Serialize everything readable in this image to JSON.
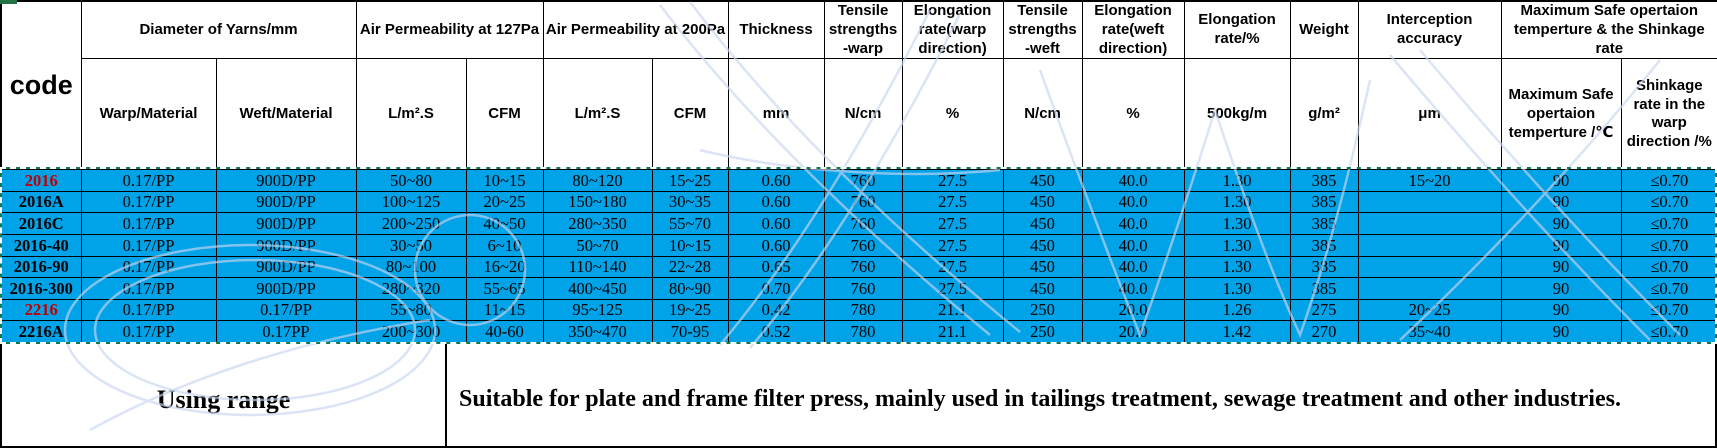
{
  "colors": {
    "highlight_blue": "#00a2e8",
    "code_red": "#c00000",
    "selection_green": "#0e7a52",
    "watermark_blue": "#c9d6f0",
    "border_black": "#000000"
  },
  "table": {
    "code_header": "code",
    "groups": [
      {
        "label": "Diameter of Yarns/mm",
        "span": 2
      },
      {
        "label": "Air Permeability at 127Pa",
        "span": 2
      },
      {
        "label": "Air Permeability at 200Pa",
        "span": 2
      },
      {
        "label": "Thickness",
        "span": 1
      },
      {
        "label": "Tensile strengths -warp",
        "span": 1
      },
      {
        "label": "Elongation rate(warp direction)",
        "span": 1
      },
      {
        "label": "Tensile strengths -weft",
        "span": 1
      },
      {
        "label": "Elongation rate(weft direction)",
        "span": 1
      },
      {
        "label": "Elongation rate/%",
        "span": 1
      },
      {
        "label": "Weight",
        "span": 1
      },
      {
        "label": "Interception accuracy",
        "span": 1
      },
      {
        "label": "Maximum Safe opertaion temperture & the Shinkage rate",
        "span": 2
      }
    ],
    "sub_headers": [
      "Warp/Material",
      "Weft/Material",
      "L/m².S",
      "CFM",
      "L/m².S",
      "CFM",
      "mm",
      "N/cm",
      "%",
      "N/cm",
      "%",
      "500kg/m",
      "g/m²",
      "μm",
      "Maximum Safe opertaion temperture /℃",
      "Shinkage rate in the warp direction /%"
    ],
    "rows": [
      {
        "code": "2016",
        "red": true,
        "values": [
          "0.17/PP",
          "900D/PP",
          "50~80",
          "10~15",
          "80~120",
          "15~25",
          "0.60",
          "760",
          "27.5",
          "450",
          "40.0",
          "1.30",
          "385",
          "15~20",
          "90",
          "≤0.70"
        ]
      },
      {
        "code": "2016A",
        "red": false,
        "values": [
          "0.17/PP",
          "900D/PP",
          "100~125",
          "20~25",
          "150~180",
          "30~35",
          "0.60",
          "760",
          "27.5",
          "450",
          "40.0",
          "1.30",
          "385",
          "",
          "90",
          "≤0.70"
        ]
      },
      {
        "code": "2016C",
        "red": false,
        "values": [
          "0.17/PP",
          "900D/PP",
          "200~250",
          "40~50",
          "280~350",
          "55~70",
          "0.60",
          "760",
          "27.5",
          "450",
          "40.0",
          "1.30",
          "385",
          "",
          "90",
          "≤0.70"
        ]
      },
      {
        "code": "2016-40",
        "red": false,
        "values": [
          "0.17/PP",
          "900D/PP",
          "30~50",
          "6~10",
          "50~70",
          "10~15",
          "0.60",
          "760",
          "27.5",
          "450",
          "40.0",
          "1.30",
          "385",
          "",
          "90",
          "≤0.70"
        ]
      },
      {
        "code": "2016-90",
        "red": false,
        "values": [
          "0.17/PP",
          "900D/PP",
          "80~100",
          "16~20",
          "110~140",
          "22~28",
          "0.65",
          "760",
          "27.5",
          "450",
          "40.0",
          "1.30",
          "385",
          "",
          "90",
          "≤0.70"
        ]
      },
      {
        "code": "2016-300",
        "red": false,
        "values": [
          "0.17/PP",
          "900D/PP",
          "280~320",
          "55~65",
          "400~450",
          "80~90",
          "0.70",
          "760",
          "27.5",
          "450",
          "40.0",
          "1.30",
          "385",
          "",
          "90",
          "≤0.70"
        ]
      },
      {
        "code": "2216",
        "red": true,
        "values": [
          "0.17/PP",
          "0.17/PP",
          "55~80",
          "11~15",
          "95~125",
          "19~25",
          "0.42",
          "780",
          "21.1",
          "250",
          "20.0",
          "1.26",
          "275",
          "20~25",
          "90",
          "≤0.70"
        ]
      },
      {
        "code": "2216A",
        "red": false,
        "values": [
          "0.17/PP",
          "0.17PP",
          "200~300",
          "40-60",
          "350~470",
          "70-95",
          "0.52",
          "780",
          "21.1",
          "250",
          "20.0",
          "1.42",
          "270",
          "35~40",
          "90",
          "≤0.70"
        ]
      }
    ]
  },
  "footer": {
    "label": "Using range",
    "text": "Suitable for plate and frame filter press, mainly used in tailings treatment, sewage treatment and other industries."
  }
}
